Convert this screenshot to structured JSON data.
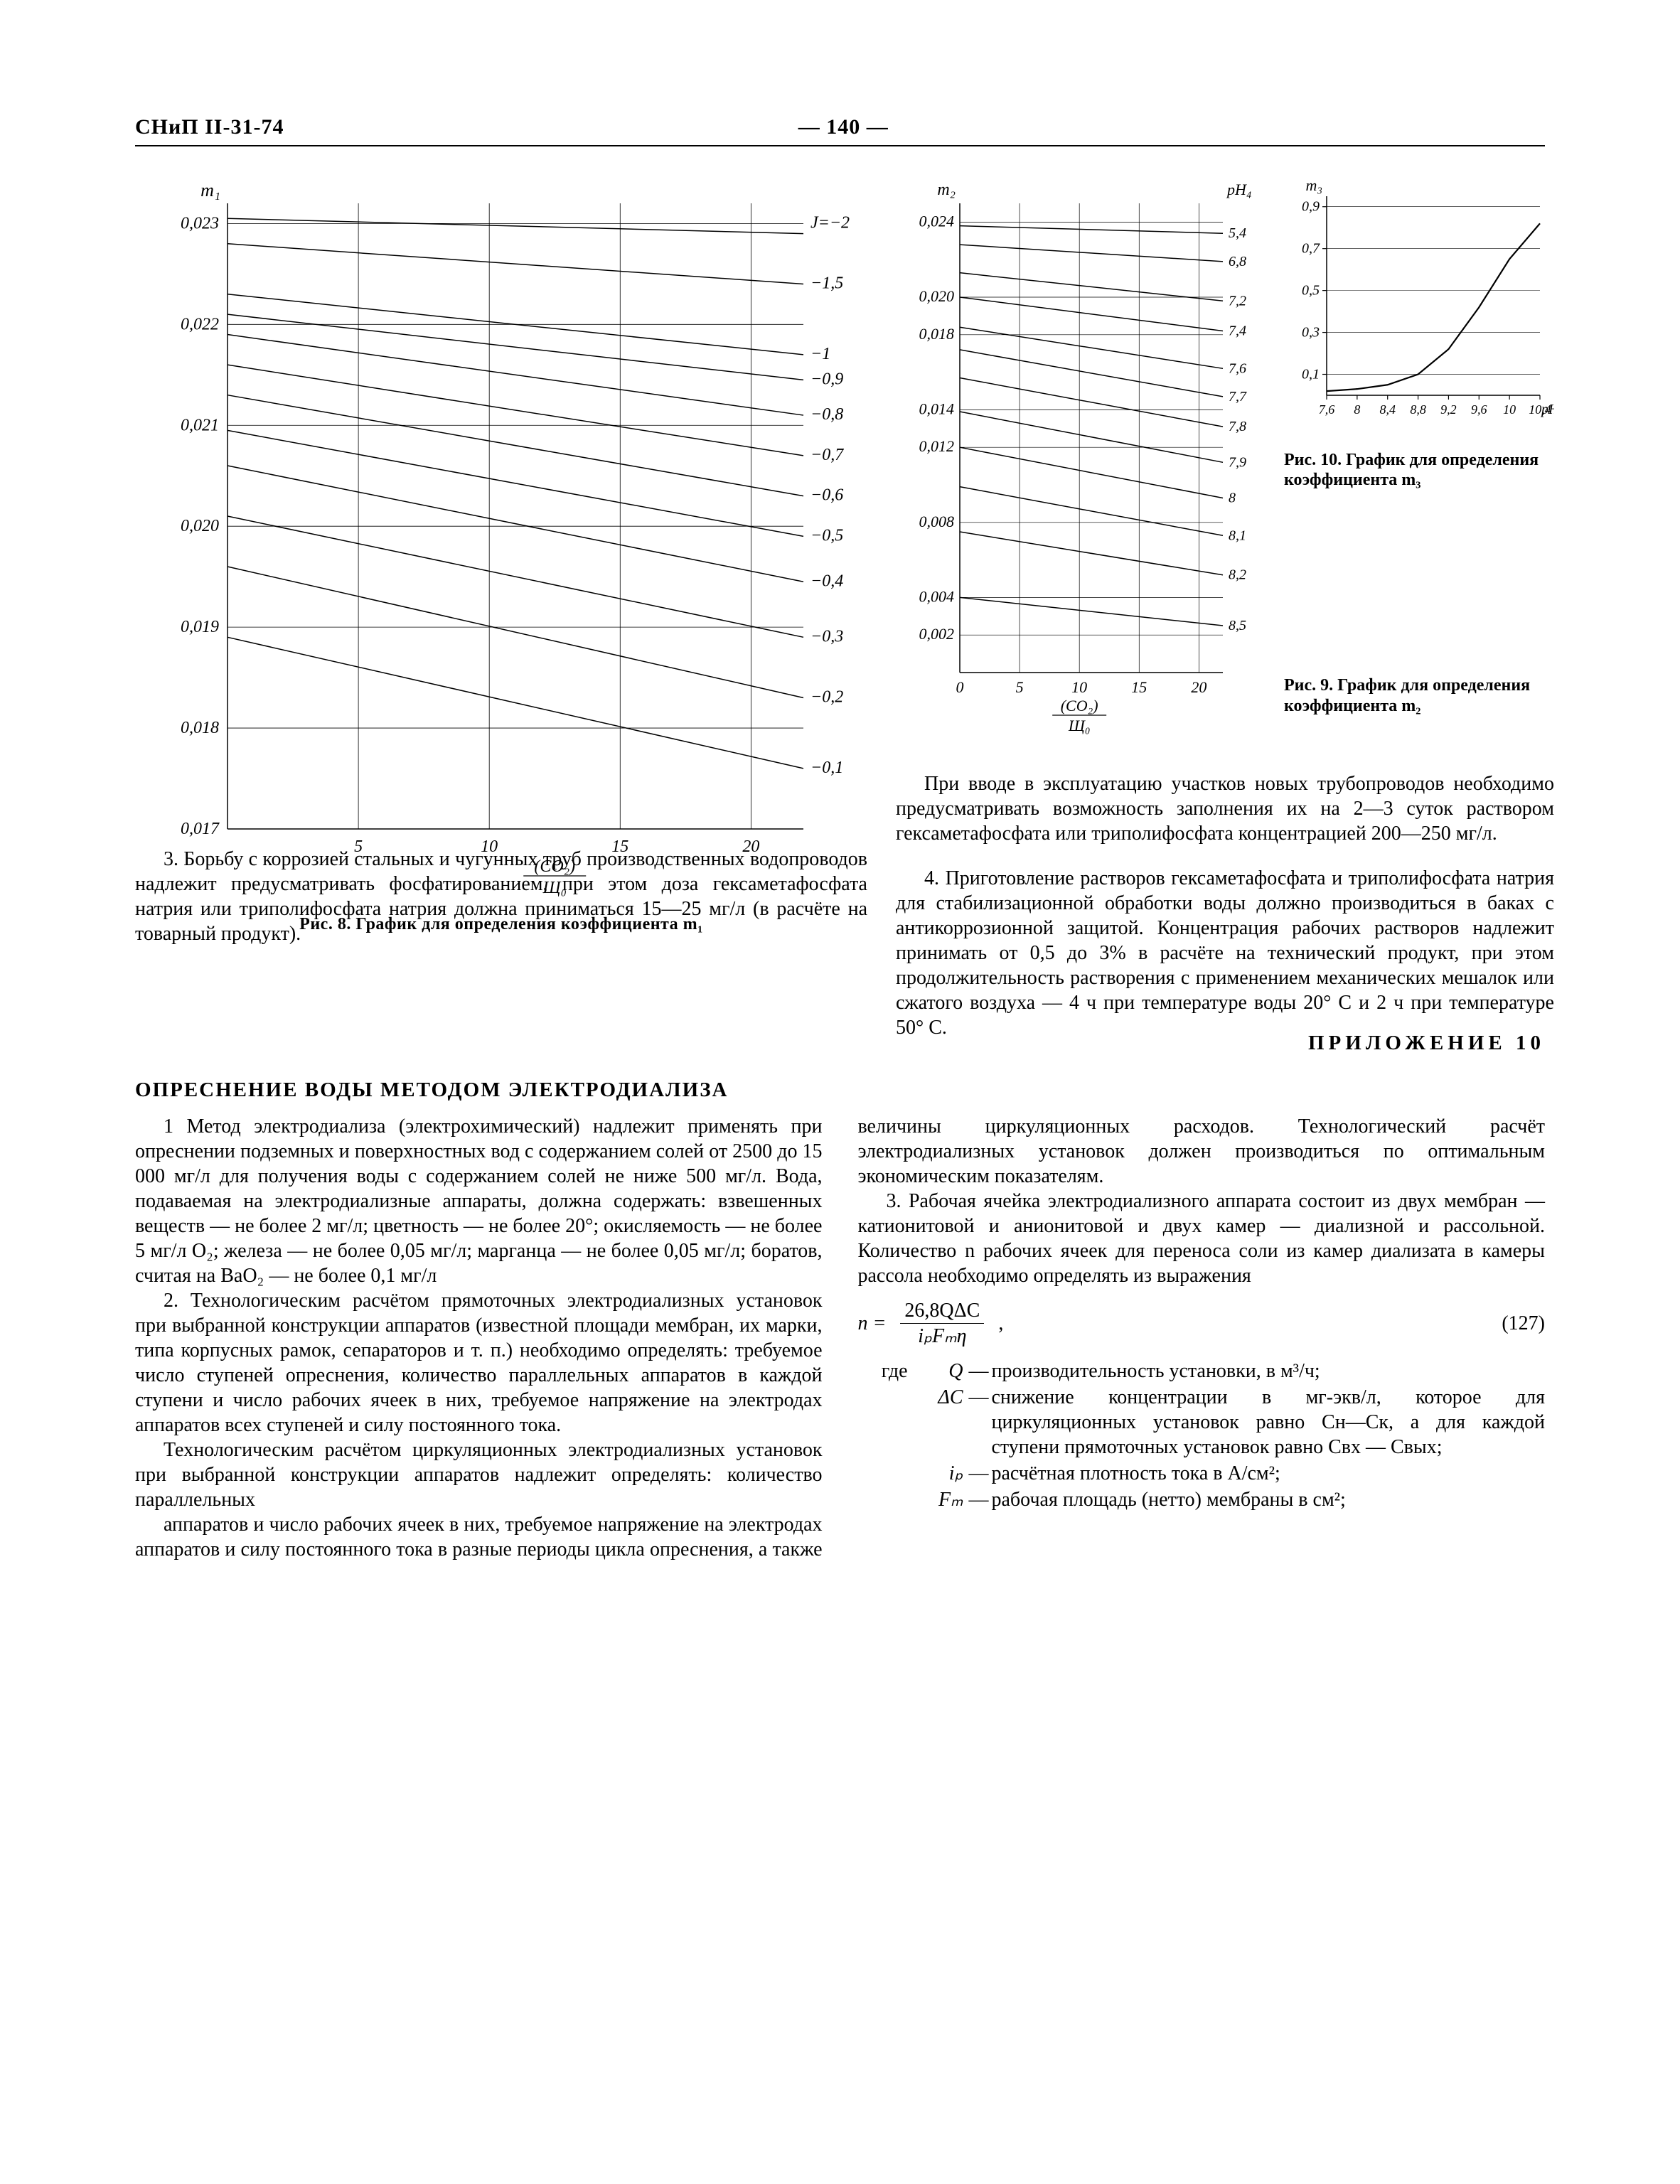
{
  "header": {
    "left": "СНиП II-31-74",
    "center": "— 140 —"
  },
  "fig8": {
    "type": "line",
    "caption": "Рис. 8. График для определения коэффициента m₁",
    "x_label_html": "(CO₂) / Щ₀",
    "y_label": "m₁",
    "x_ticks": [
      5,
      10,
      15,
      20
    ],
    "y_ticks": [
      0.017,
      0.018,
      0.019,
      0.02,
      0.021,
      0.022,
      0.023
    ],
    "y_tick_labels": [
      "0,017",
      "0,018",
      "0,019",
      "0,020",
      "0,021",
      "0,022",
      "0,023"
    ],
    "xlim": [
      0,
      22
    ],
    "ylim": [
      0.017,
      0.0232
    ],
    "series_label_prefix": "J=",
    "series": [
      {
        "label": "−2",
        "y0": 0.02305,
        "y1": 0.0229
      },
      {
        "label": "−1,5",
        "y0": 0.0228,
        "y1": 0.0224
      },
      {
        "label": "−1",
        "y0": 0.0223,
        "y1": 0.0217
      },
      {
        "label": "−0,9",
        "y0": 0.0221,
        "y1": 0.02145
      },
      {
        "label": "−0,8",
        "y0": 0.0219,
        "y1": 0.0211
      },
      {
        "label": "−0,7",
        "y0": 0.0216,
        "y1": 0.0207
      },
      {
        "label": "−0,6",
        "y0": 0.0213,
        "y1": 0.0203
      },
      {
        "label": "−0,5",
        "y0": 0.02095,
        "y1": 0.0199
      },
      {
        "label": "−0,4",
        "y0": 0.0206,
        "y1": 0.01945
      },
      {
        "label": "−0,3",
        "y0": 0.0201,
        "y1": 0.0189
      },
      {
        "label": "−0,2",
        "y0": 0.0196,
        "y1": 0.0183
      },
      {
        "label": "−0,1",
        "y0": 0.0189,
        "y1": 0.0176
      }
    ],
    "line_color": "#000000",
    "grid_color": "#000000",
    "background_color": "#ffffff",
    "line_width": 1.5
  },
  "fig9": {
    "type": "line",
    "caption": "Рис. 9. График для определения коэффициента m₂",
    "x_label_html": "(CO₂) / Щ₀",
    "y_label": "m₂",
    "right_label": "pH₄",
    "x_ticks": [
      0,
      5,
      10,
      15,
      20
    ],
    "y_ticks": [
      0.002,
      0.004,
      0.008,
      0.012,
      0.014,
      0.018,
      0.02,
      0.024
    ],
    "y_tick_labels": [
      "0,002",
      "0,004",
      "0,008",
      "0,012",
      "0,014",
      "0,018",
      "0,020",
      "0,024"
    ],
    "xlim": [
      0,
      22
    ],
    "ylim": [
      0.0,
      0.025
    ],
    "series": [
      {
        "label": "5,4",
        "y0": 0.0238,
        "y1": 0.0234
      },
      {
        "label": "6,8",
        "y0": 0.0228,
        "y1": 0.0219
      },
      {
        "label": "7,2",
        "y0": 0.0213,
        "y1": 0.0198
      },
      {
        "label": "7,4",
        "y0": 0.02,
        "y1": 0.0182
      },
      {
        "label": "7,6",
        "y0": 0.0184,
        "y1": 0.0162
      },
      {
        "label": "7,7",
        "y0": 0.0172,
        "y1": 0.0147
      },
      {
        "label": "7,8",
        "y0": 0.0157,
        "y1": 0.0131
      },
      {
        "label": "7,9",
        "y0": 0.0139,
        "y1": 0.0112
      },
      {
        "label": "8",
        "y0": 0.012,
        "y1": 0.0093
      },
      {
        "label": "8,1",
        "y0": 0.0099,
        "y1": 0.0073
      },
      {
        "label": "8,2",
        "y0": 0.0075,
        "y1": 0.0052
      },
      {
        "label": "8,5",
        "y0": 0.004,
        "y1": 0.0025
      }
    ],
    "line_color": "#000000",
    "grid_color": "#000000",
    "line_width": 1.5
  },
  "fig10": {
    "type": "line",
    "caption": "Рис. 10. График для определения коэффициента m₃",
    "y_label": "m₃",
    "x_label": "pH₅",
    "x_ticks": [
      7.6,
      8,
      8.4,
      8.8,
      9.2,
      9.6,
      10,
      10.4
    ],
    "x_tick_labels": [
      "7,6",
      "8",
      "8,4",
      "8,8",
      "9,2",
      "9,6",
      "10",
      "10,4"
    ],
    "y_ticks": [
      0.1,
      0.3,
      0.5,
      0.7,
      0.9
    ],
    "y_tick_labels": [
      "0,1",
      "0,3",
      "0,5",
      "0,7",
      "0,9"
    ],
    "xlim": [
      7.6,
      10.4
    ],
    "ylim": [
      0,
      0.95
    ],
    "curve": [
      [
        7.6,
        0.02
      ],
      [
        8.0,
        0.03
      ],
      [
        8.4,
        0.05
      ],
      [
        8.8,
        0.1
      ],
      [
        9.2,
        0.22
      ],
      [
        9.6,
        0.42
      ],
      [
        10.0,
        0.65
      ],
      [
        10.4,
        0.82
      ]
    ],
    "line_color": "#000000",
    "line_width": 2.2
  },
  "text": {
    "p3": "3. Борьбу с коррозией стальных и чугунных труб производственных водопроводов надлежит предусматривать фосфатированием, при этом доза гексаметафосфата натрия или триполифосфата натрия должна приниматься 15—25 мг/л (в расчёте на товарный продукт).",
    "p_intro": "При вводе в эксплуатацию участков новых трубопроводов необходимо предусматривать возможность заполнения их на 2—3 суток раствором гексаметафосфата или триполифосфата концентрацией 200—250 мг/л.",
    "p4": "4. Приготовление растворов гексаметафосфата и триполифосфата натрия для стабилизационной обработки воды должно производиться в баках с антикоррозионной защитой. Концентрация рабочих растворов надлежит принимать от 0,5 до 3% в расчёте на технический продукт, при этом продолжительность растворения с применением механических мешалок или сжатого воздуха — 4 ч при температуре воды 20° С и 2 ч при температуре 50° С.",
    "appendix": "ПРИЛОЖЕНИЕ 10",
    "section": "ОПРЕСНЕНИЕ ВОДЫ МЕТОДОМ ЭЛЕКТРОДИАЛИЗА",
    "s1": "1 Метод электродиализа (электрохимический) надлежит применять при опреснении подземных и поверхностных вод с содержанием солей от 2500 до 15 000 мг/л для получения воды с содержанием солей не ниже 500 мг/л. Вода, подаваемая на электродиализные аппараты, должна содержать: взвешенных веществ — не более 2 мг/л; цветность — не более 20°; окисляемость — не более 5 мг/л O₂; железа — не более 0,05 мг/л; марганца — не более 0,05 мг/л; боратов, считая на BaO₂ — не более 0,1 мг/л",
    "s2": "2. Технологическим расчётом прямоточных электродиализных установок при выбранной конструкции аппаратов (известной площади мембран, их марки, типа корпусных рамок, сепараторов и т. п.) необходимо определять: требуемое число ступеней опреснения, количество параллельных аппаратов в каждой ступени и число рабочих ячеек в них, требуемое напряжение на электродах аппаратов всех ступеней и силу постоянного тока.",
    "s2b": "Технологическим расчётом циркуляционных электродиализных установок при выбранной конструкции аппаратов надлежит определять: количество параллельных",
    "s2c": "аппаратов и число рабочих ячеек в них, требуемое напряжение на электродах аппаратов и силу постоянного тока в разные периоды цикла опреснения, а также величины циркуляционных расходов. Технологический расчёт электродиализных установок должен производиться по оптимальным экономическим показателям.",
    "s3": "3. Рабочая ячейка электродиализного аппарата состоит из двух мембран — катионитовой и анионитовой и двух камер — диализной и рассольной. Количество n рабочих ячеек для переноса соли из камер диализата в камеры рассола необходимо определять из выражения",
    "formula_num": "(127)",
    "formula_numerator": "26,8QΔC",
    "formula_denom": "iₚFₘη",
    "formula_lhs": "n =",
    "where_label": "где",
    "where": [
      {
        "sym": "Q",
        "def": "производительность установки, в м³/ч;"
      },
      {
        "sym": "ΔC",
        "def": "снижение концентрации в мг-экв/л, которое для циркуляционных установок равно Cн—Cк, а для каждой ступени прямоточных установок равно Cвх — Cвых;"
      },
      {
        "sym": "iₚ",
        "def": "расчётная плотность тока в А/см²;"
      },
      {
        "sym": "Fₘ",
        "def": "рабочая площадь (нетто) мембраны в см²;"
      }
    ]
  }
}
